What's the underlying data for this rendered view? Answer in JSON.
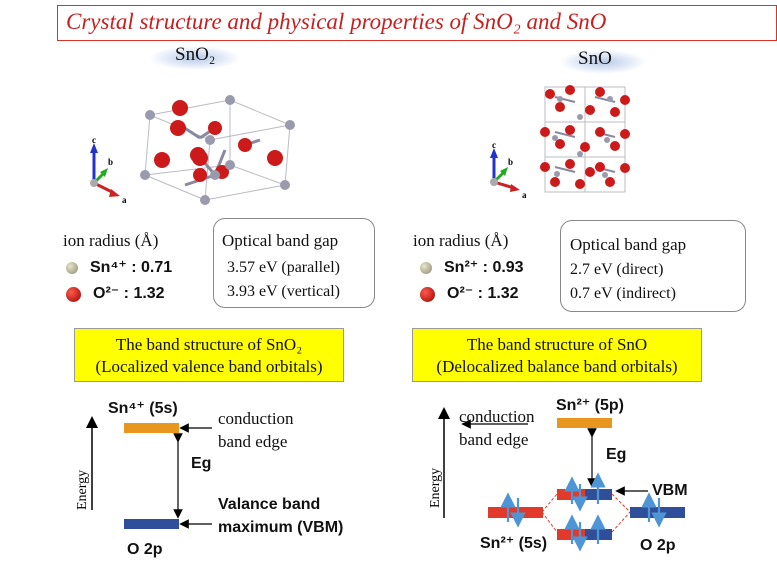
{
  "title": {
    "text": "Crystal structure and  physical properties of SnO₂ and SnO"
  },
  "sno2": {
    "label": "SnO₂",
    "ion_radius_header": "ion radius (Å)",
    "sn_ion": "Sn⁴⁺ : 0.71",
    "o_ion": "O²⁻  : 1.32",
    "gap_title": "Optical band gap",
    "gap_1": "3.57 eV (parallel)",
    "gap_2": "3.93 eV (vertical)",
    "band_title_1": "The band structure of SnO₂",
    "band_title_2": "(Localized valence band orbitals)",
    "cb_label": "Sn⁴⁺ (5s)",
    "conduction": "conduction",
    "band_edge": "band edge",
    "eg": "Eg",
    "vbm_1": "Valance band",
    "vbm_2": "maximum (VBM)",
    "o2p": "O 2p",
    "energy": "Energy"
  },
  "sno": {
    "label": "SnO",
    "ion_radius_header": "ion radius (Å)",
    "sn_ion": "Sn²⁺ : 0.93",
    "o_ion": "O²⁻  : 1.32",
    "gap_title": "Optical band gap",
    "gap_1": "2.7 eV (direct)",
    "gap_2": "0.7 eV (indirect)",
    "band_title_1": "The band structure of SnO",
    "band_title_2": "(Delocalized balance band orbitals)",
    "cb_label": "Sn²⁺ (5p)",
    "conduction": "conduction",
    "band_edge": "band edge",
    "eg": "Eg",
    "vbm": "VBM",
    "sn5s": "Sn²⁺ (5s)",
    "o2p": "O 2p",
    "energy": "Energy"
  },
  "axes": {
    "a": "a",
    "b": "b",
    "c": "c"
  },
  "colors": {
    "title": "#c81e1e",
    "highlight": "#ffff00",
    "conduction_band": "#e8961e",
    "valence_band": "#2f4f9a",
    "sn_level": "#e23a2a",
    "spin_arrow": "#4f95d6",
    "oxygen_atom": "#cc1a1a",
    "tin_atom": "#9a9aae"
  }
}
